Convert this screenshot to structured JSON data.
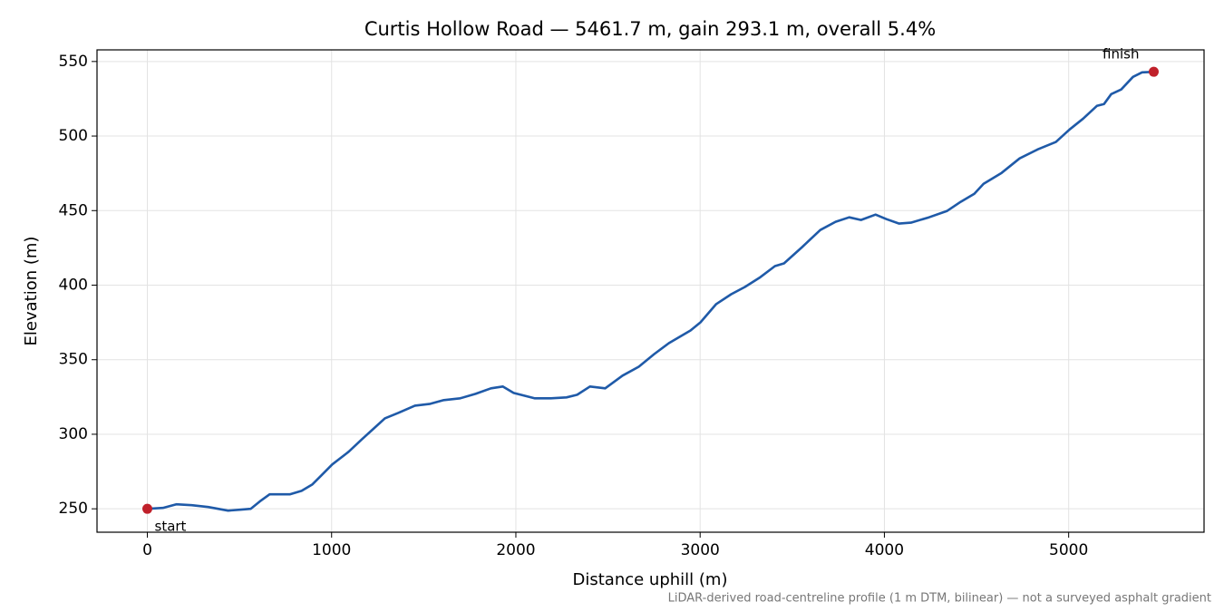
{
  "chart_data": {
    "type": "line",
    "title": "Curtis Hollow Road — 5461.7 m, gain 293.1 m, overall 5.4%",
    "x_label": "Distance uphill (m)",
    "y_label": "Elevation (m)",
    "note": "LiDAR-derived road-centreline profile (1 m DTM, bilinear) — not a surveyed asphalt gradient",
    "color": "#1f5aa8",
    "x": [
      0,
      84,
      157,
      241,
      330,
      438,
      502,
      561,
      610,
      664,
      773,
      837,
      896,
      945,
      1004,
      1093,
      1166,
      1230,
      1289,
      1363,
      1452,
      1535,
      1609,
      1698,
      1781,
      1865,
      1929,
      1988,
      2101,
      2190,
      2274,
      2333,
      2402,
      2485,
      2579,
      2667,
      2751,
      2830,
      2948,
      3002,
      3086,
      3169,
      3243,
      3322,
      3406,
      3455,
      3553,
      3652,
      3735,
      3809,
      3873,
      3952,
      4011,
      4080,
      4144,
      4242,
      4341,
      4414,
      4488,
      4538,
      4636,
      4734,
      4833,
      4931,
      5005,
      5079,
      5153,
      5192,
      5231,
      5285,
      5349,
      5398,
      5461.7
    ],
    "values": [
      250,
      250.6,
      253,
      252.4,
      251.2,
      248.8,
      249.4,
      250,
      254.9,
      259.7,
      259.7,
      262,
      266.4,
      272.5,
      279.8,
      288.3,
      296.8,
      304,
      310.7,
      314.4,
      319.2,
      320.4,
      322.9,
      324.1,
      327.1,
      330.8,
      332,
      327.7,
      324.1,
      324.1,
      324.7,
      326.5,
      332,
      330.8,
      339.3,
      345.3,
      353.8,
      361.1,
      369.6,
      375.1,
      387.2,
      393.9,
      398.8,
      404.9,
      412.8,
      414.6,
      425.5,
      437,
      442.5,
      445.5,
      443.7,
      447.3,
      444.3,
      441.3,
      441.9,
      445.5,
      449.8,
      455.9,
      461.3,
      468,
      475.3,
      485,
      491.1,
      496,
      504.4,
      511.7,
      520.2,
      521.5,
      528.1,
      531.2,
      539.7,
      542.7,
      543.1
    ],
    "endpoints": {
      "x": [
        0,
        5461.7
      ],
      "values": [
        250,
        543.1
      ],
      "labels": [
        "start",
        "finish"
      ],
      "color": "#c0202a"
    },
    "xlim": [
      -273.1,
      5734.8
    ],
    "ylim": [
      234.3,
      557.8
    ],
    "xticks": [
      0,
      1000,
      2000,
      3000,
      4000,
      5000
    ],
    "yticks": [
      250,
      300,
      350,
      400,
      450,
      500,
      550
    ],
    "grid": true
  }
}
